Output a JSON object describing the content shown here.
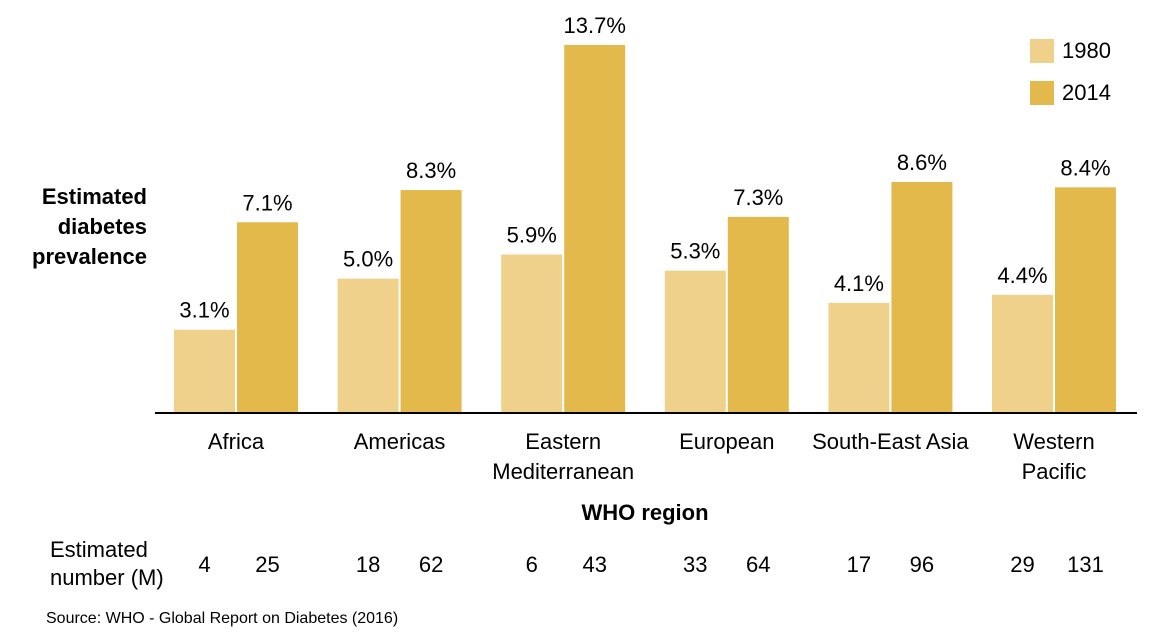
{
  "chart_data": {
    "type": "bar",
    "title": "",
    "ylabel_lines": [
      "Estimated",
      "diabetes",
      "prevalence"
    ],
    "xlabel": "WHO region",
    "categories": [
      [
        "Africa"
      ],
      [
        "Americas"
      ],
      [
        "Eastern",
        "Mediterranean"
      ],
      [
        "European"
      ],
      [
        "South-East Asia"
      ],
      [
        "Western",
        "Pacific"
      ]
    ],
    "series": [
      {
        "name": "1980",
        "color": "#F0D18C",
        "values": [
          3.1,
          5.0,
          5.9,
          5.3,
          4.1,
          4.4
        ],
        "labels": [
          "3.1%",
          "5.0%",
          "5.9%",
          "5.3%",
          "4.1%",
          "4.4%"
        ],
        "estimated_number": [
          "4",
          "18",
          "6",
          "33",
          "17",
          "29"
        ]
      },
      {
        "name": "2014",
        "color": "#E3B94B",
        "values": [
          7.1,
          8.3,
          13.7,
          7.3,
          8.6,
          8.4
        ],
        "labels": [
          "7.1%",
          "8.3%",
          "13.7%",
          "7.3%",
          "8.6%",
          "8.4%"
        ],
        "estimated_number": [
          "25",
          "62",
          "43",
          "64",
          "96",
          "131"
        ]
      }
    ],
    "ylim": [
      0,
      14
    ],
    "grid": false,
    "legend": "top-right",
    "counts_label_lines": [
      "Estimated",
      "number (M)"
    ]
  },
  "source": "Source: WHO  - Global Report on Diabetes (2016)"
}
